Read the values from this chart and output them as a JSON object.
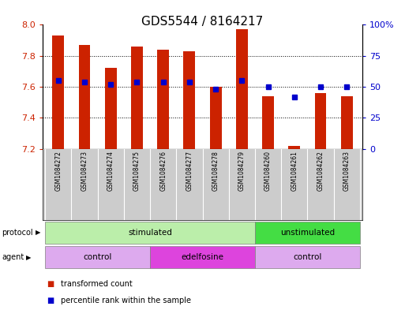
{
  "title": "GDS5544 / 8164217",
  "samples": [
    "GSM1084272",
    "GSM1084273",
    "GSM1084274",
    "GSM1084275",
    "GSM1084276",
    "GSM1084277",
    "GSM1084278",
    "GSM1084279",
    "GSM1084260",
    "GSM1084261",
    "GSM1084262",
    "GSM1084263"
  ],
  "bar_values": [
    7.93,
    7.87,
    7.72,
    7.86,
    7.84,
    7.83,
    7.6,
    7.97,
    7.54,
    7.22,
    7.56,
    7.54
  ],
  "bar_base": 7.2,
  "percentile_values": [
    55,
    54,
    52,
    54,
    54,
    54,
    48,
    55,
    50,
    42,
    50,
    50
  ],
  "ylim_left": [
    7.2,
    8.0
  ],
  "ylim_right": [
    0,
    100
  ],
  "yticks_left": [
    7.2,
    7.4,
    7.6,
    7.8,
    8.0
  ],
  "yticks_right": [
    0,
    25,
    50,
    75,
    100
  ],
  "ytick_right_labels": [
    "0",
    "25",
    "50",
    "75",
    "100%"
  ],
  "bar_color": "#cc2200",
  "dot_color": "#0000cc",
  "bg_color": "#ffffff",
  "label_bg": "#cccccc",
  "protocol_groups": [
    {
      "label": "stimulated",
      "start": 0,
      "end": 7,
      "color": "#bbeeaa"
    },
    {
      "label": "unstimulated",
      "start": 8,
      "end": 11,
      "color": "#44dd44"
    }
  ],
  "agent_groups": [
    {
      "label": "control",
      "start": 0,
      "end": 3,
      "color": "#ddaaee"
    },
    {
      "label": "edelfosine",
      "start": 4,
      "end": 7,
      "color": "#dd44dd"
    },
    {
      "label": "control",
      "start": 8,
      "end": 11,
      "color": "#ddaaee"
    }
  ],
  "grid_yticks": [
    7.4,
    7.6,
    7.8
  ],
  "legend_items": [
    {
      "label": "transformed count",
      "color": "#cc2200"
    },
    {
      "label": "percentile rank within the sample",
      "color": "#0000cc"
    }
  ]
}
